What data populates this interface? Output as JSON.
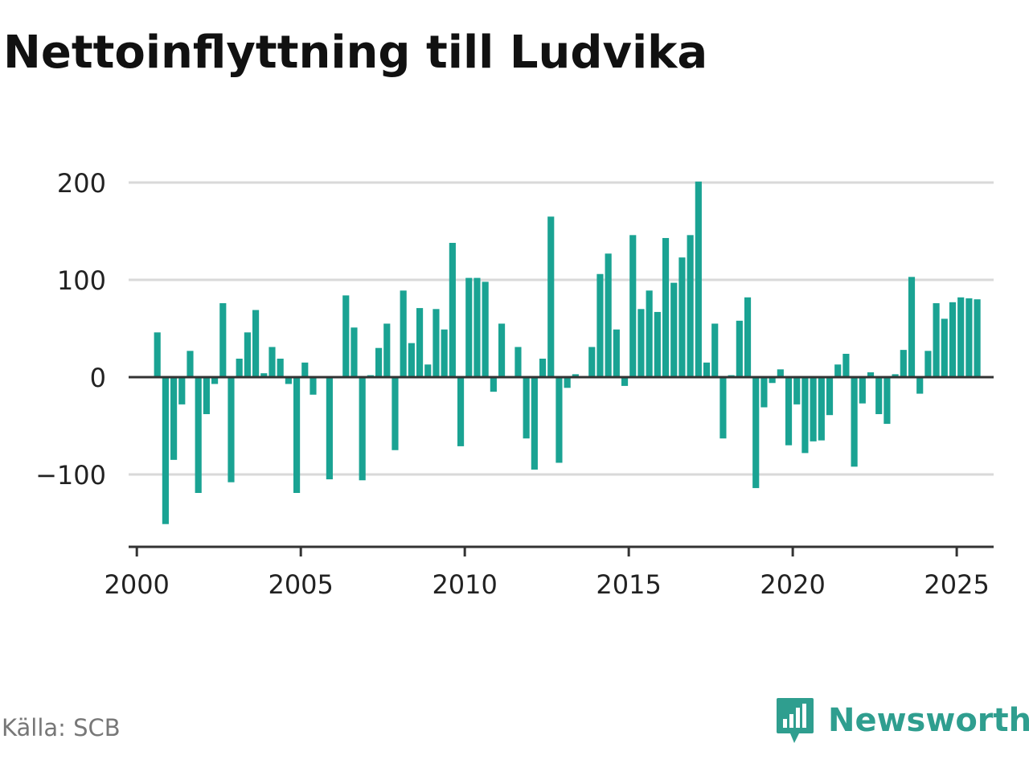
{
  "title": "Nettoinflyttning till Ludvika",
  "source": "Källa: SCB",
  "brand": {
    "name": "Newsworthy",
    "icon": "newsworthy-logo-icon"
  },
  "colors": {
    "bar": "#1aa393",
    "grid": "#d9d9d9",
    "zero": "#333333",
    "axis": "#333333"
  },
  "chart_data": {
    "type": "bar",
    "title": "Nettoinflyttning till Ludvika",
    "xlabel": "",
    "ylabel": "",
    "frequency": "quarterly",
    "start_year": 2000,
    "start_quarter": 3,
    "xlim": [
      1999.75,
      2026.125
    ],
    "ylim": [
      -175,
      200
    ],
    "yticks": [
      -100,
      0,
      100,
      200
    ],
    "ytick_labels": [
      "−100",
      "0",
      "100",
      "200"
    ],
    "xticks": [
      2000,
      2005,
      2010,
      2015,
      2020,
      2025
    ],
    "xtick_labels": [
      "2000",
      "2005",
      "2010",
      "2015",
      "2020",
      "2025"
    ],
    "grid": true,
    "legend": "none",
    "values": [
      46,
      -151,
      -85,
      -28,
      27,
      -119,
      -38,
      -7,
      76,
      -108,
      19,
      46,
      69,
      4,
      31,
      19,
      -7,
      -119,
      15,
      -18,
      0,
      -105,
      1,
      84,
      51,
      -106,
      2,
      30,
      55,
      -75,
      89,
      35,
      71,
      13,
      70,
      49,
      138,
      -71,
      102,
      102,
      98,
      -15,
      55,
      0,
      31,
      -63,
      -95,
      19,
      165,
      -88,
      -11,
      3,
      0,
      31,
      106,
      127,
      49,
      -9,
      146,
      70,
      89,
      67,
      143,
      97,
      123,
      146,
      201,
      15,
      55,
      -63,
      2,
      58,
      82,
      -114,
      -31,
      -6,
      8,
      -70,
      -28,
      -78,
      -66,
      -65,
      -39,
      13,
      24,
      -92,
      -27,
      5,
      -38,
      -48,
      3,
      28,
      103,
      -17,
      27,
      76,
      60,
      77,
      82,
      81,
      80
    ]
  }
}
